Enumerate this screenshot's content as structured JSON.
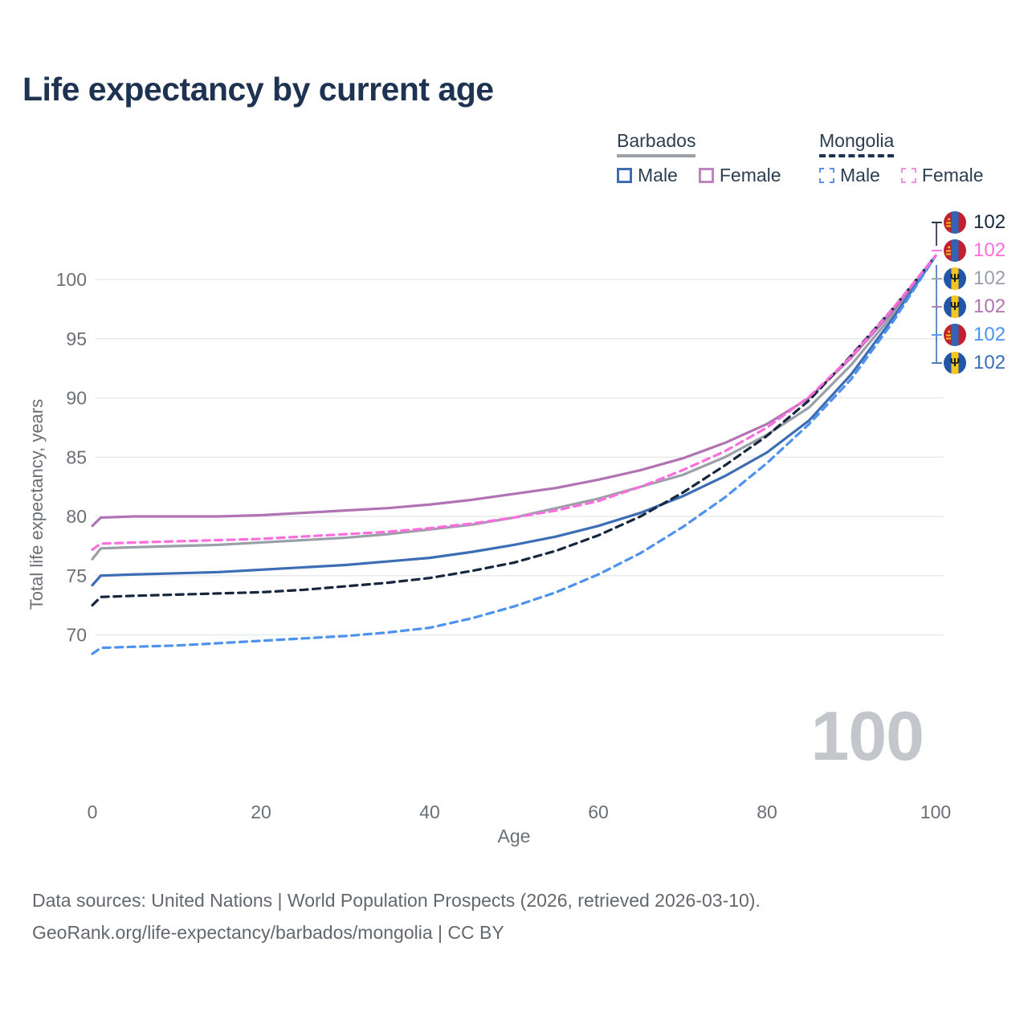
{
  "title": "Life expectancy by current age",
  "watermark_age": "100",
  "footer": {
    "line1": "Data sources: United Nations | World Population Prospects (2026, retrieved 2026-03-10).",
    "line2": "GeoRank.org/life-expectancy/barbados/mongolia | CC BY"
  },
  "legend": {
    "groups": [
      {
        "label": "Barbados",
        "underline_style": "solid",
        "underline_color": "#9ba1a7",
        "items": [
          {
            "label": "Male",
            "color": "#3d6eb5",
            "dashed": false
          },
          {
            "label": "Female",
            "color": "#bd84c0",
            "dashed": false
          }
        ]
      },
      {
        "label": "Mongolia",
        "underline_style": "dashed",
        "underline_color": "#1d3150",
        "items": [
          {
            "label": "Male",
            "color": "#5b8ff0",
            "dashed": true
          },
          {
            "label": "Female",
            "color": "#ff8ae0",
            "dashed": true
          }
        ]
      }
    ]
  },
  "chart_data": {
    "type": "line",
    "title": "Life expectancy by current age",
    "xlabel": "Age",
    "ylabel": "Total life expectancy, years",
    "xlim": [
      0,
      100
    ],
    "ylim": [
      66.5,
      103
    ],
    "xticks": [
      0,
      20,
      40,
      60,
      80,
      100
    ],
    "yticks": [
      70,
      75,
      80,
      85,
      90,
      95,
      100
    ],
    "grid": "horizontal",
    "gridline_color": "#e8eaec",
    "axis_text_color": "#6a7076",
    "legend_position": "top-right",
    "x": [
      0,
      1,
      5,
      10,
      15,
      20,
      25,
      30,
      35,
      40,
      45,
      50,
      55,
      60,
      65,
      70,
      75,
      80,
      85,
      90,
      95,
      100
    ],
    "series": [
      {
        "id": "barbados-total",
        "name": "Barbados",
        "country": "Barbados",
        "sex": "Total",
        "color": "#9aa0a8",
        "dash": false,
        "values": [
          76.4,
          77.3,
          77.4,
          77.5,
          77.6,
          77.8,
          78.0,
          78.2,
          78.5,
          78.9,
          79.3,
          79.9,
          80.7,
          81.5,
          82.5,
          83.5,
          85.0,
          86.9,
          89.2,
          92.8,
          97.1,
          102
        ]
      },
      {
        "id": "barbados-female",
        "name": "Barbados Female",
        "country": "Barbados",
        "sex": "Female",
        "color": "#b173b3",
        "dash": false,
        "values": [
          79.2,
          79.9,
          80.0,
          80.0,
          80.0,
          80.1,
          80.3,
          80.5,
          80.7,
          81.0,
          81.4,
          81.9,
          82.4,
          83.1,
          83.9,
          84.9,
          86.2,
          87.8,
          90.0,
          93.4,
          97.4,
          102
        ]
      },
      {
        "id": "barbados-male",
        "name": "Barbados Male",
        "country": "Barbados",
        "sex": "Male",
        "color": "#3d6eb5",
        "dash": false,
        "values": [
          74.2,
          75.0,
          75.1,
          75.2,
          75.3,
          75.5,
          75.7,
          75.9,
          76.2,
          76.5,
          77.0,
          77.6,
          78.3,
          79.2,
          80.3,
          81.7,
          83.4,
          85.4,
          88.1,
          92.0,
          96.8,
          102
        ]
      },
      {
        "id": "mongolia-total",
        "name": "Mongolia",
        "country": "Mongolia",
        "sex": "Total",
        "color": "#16273d",
        "dash": true,
        "values": [
          72.5,
          73.2,
          73.3,
          73.4,
          73.5,
          73.6,
          73.8,
          74.1,
          74.4,
          74.8,
          75.4,
          76.1,
          77.1,
          78.4,
          80.0,
          82.0,
          84.3,
          86.8,
          89.8,
          93.6,
          97.6,
          102
        ]
      },
      {
        "id": "mongolia-male",
        "name": "Mongolia Male",
        "country": "Mongolia",
        "sex": "Male",
        "color": "#4e92f0",
        "dash": true,
        "values": [
          68.4,
          68.9,
          69.0,
          69.1,
          69.3,
          69.5,
          69.7,
          69.9,
          70.2,
          70.6,
          71.4,
          72.4,
          73.6,
          75.1,
          76.9,
          79.1,
          81.6,
          84.5,
          87.8,
          91.6,
          96.5,
          102
        ]
      },
      {
        "id": "mongolia-female",
        "name": "Mongolia Female",
        "country": "Mongolia",
        "sex": "Female",
        "color": "#fc6ede",
        "dash": true,
        "values": [
          77.2,
          77.7,
          77.8,
          77.9,
          78.0,
          78.1,
          78.3,
          78.5,
          78.7,
          79.0,
          79.4,
          79.9,
          80.5,
          81.3,
          82.5,
          83.9,
          85.5,
          87.5,
          90.1,
          93.5,
          97.6,
          102
        ]
      }
    ],
    "end_labels": [
      {
        "flag": "mongolia",
        "series": "Mongolia",
        "value": "102",
        "color": "#16273d"
      },
      {
        "flag": "mongolia",
        "series": "Mongolia Female",
        "value": "102",
        "color": "#fc6ede"
      },
      {
        "flag": "barbados",
        "series": "Barbados",
        "value": "102",
        "color": "#9aa0a8"
      },
      {
        "flag": "barbados",
        "series": "Barbados Female",
        "value": "102",
        "color": "#b173b3"
      },
      {
        "flag": "mongolia",
        "series": "Mongolia Male",
        "value": "102",
        "color": "#4e92f0"
      },
      {
        "flag": "barbados",
        "series": "Barbados Male",
        "value": "102",
        "color": "#3d6eb5"
      }
    ],
    "flag_icons": {
      "barbados": "trident-icon",
      "mongolia": "soyombo-icon"
    }
  },
  "icons": {
    "barbados_trident": "Ψ"
  }
}
